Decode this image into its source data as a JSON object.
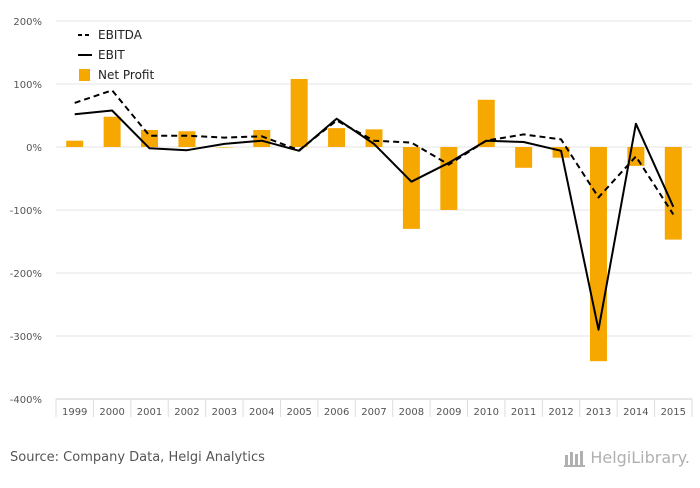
{
  "chart_data": {
    "type": "bar",
    "categories": [
      "1999",
      "2000",
      "2001",
      "2002",
      "2003",
      "2004",
      "2005",
      "2006",
      "2007",
      "2008",
      "2009",
      "2010",
      "2011",
      "2012",
      "2013",
      "2014",
      "2015"
    ],
    "series": [
      {
        "name": "EBITDA",
        "type": "line",
        "style": "dashed",
        "color": "#000000",
        "values": [
          70,
          90,
          18,
          18,
          15,
          17,
          -5,
          42,
          10,
          7,
          -28,
          10,
          20,
          12,
          -80,
          -15,
          -107
        ]
      },
      {
        "name": "EBIT",
        "type": "line",
        "style": "solid",
        "color": "#000000",
        "values": [
          52,
          58,
          -2,
          -5,
          5,
          10,
          -6,
          45,
          5,
          -55,
          -25,
          10,
          8,
          -6,
          -290,
          37,
          -95
        ]
      },
      {
        "name": "Net Profit",
        "type": "bar",
        "color": "#f7a800",
        "values": [
          10,
          48,
          27,
          25,
          0,
          27,
          108,
          30,
          28,
          -130,
          -100,
          75,
          -33,
          -17,
          -340,
          -30,
          -147
        ]
      }
    ],
    "ylim": [
      -400,
      200
    ],
    "yticks": [
      200,
      100,
      0,
      -100,
      -200,
      -300,
      -400
    ],
    "ytick_labels": [
      "200%",
      "100%",
      "0%",
      "-100%",
      "-200%",
      "-300%",
      "-400%"
    ],
    "grid": "horizontal",
    "legend": "top-left",
    "title": "",
    "xlabel": "",
    "ylabel": ""
  },
  "footer": {
    "source": "Source: Company Data, Helgi Analytics",
    "logo_text": "HelgiLibrary."
  }
}
